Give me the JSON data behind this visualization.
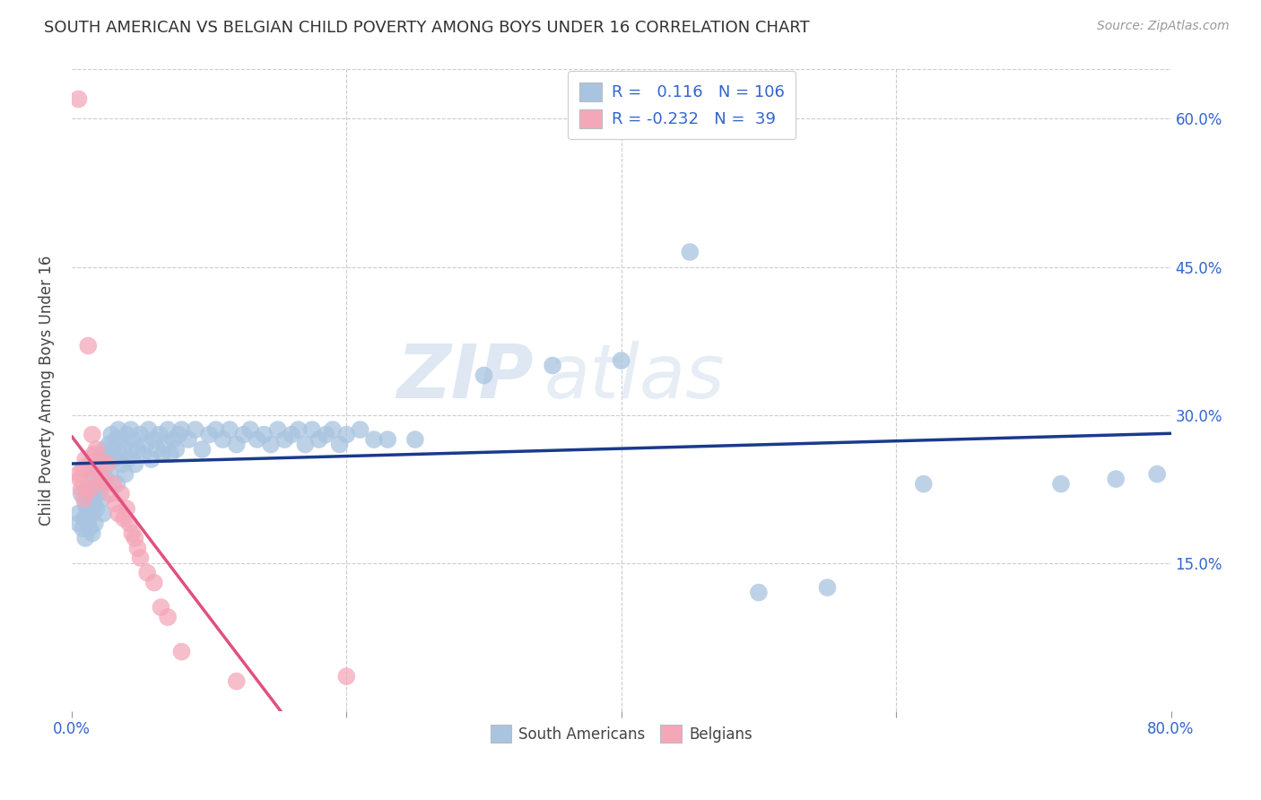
{
  "title": "SOUTH AMERICAN VS BELGIAN CHILD POVERTY AMONG BOYS UNDER 16 CORRELATION CHART",
  "source": "Source: ZipAtlas.com",
  "ylabel": "Child Poverty Among Boys Under 16",
  "xlim": [
    0.0,
    0.8
  ],
  "ylim": [
    0.0,
    0.65
  ],
  "yticks": [
    0.15,
    0.3,
    0.45,
    0.6
  ],
  "ytick_labels": [
    "15.0%",
    "30.0%",
    "45.0%",
    "60.0%"
  ],
  "xtick_labels": [
    "0.0%",
    "80.0%"
  ],
  "south_american_R": 0.116,
  "south_american_N": 106,
  "belgian_R": -0.232,
  "belgian_N": 39,
  "south_american_color": "#a8c4e0",
  "belgian_color": "#f4a7b9",
  "trend_sa_color": "#1a3a8c",
  "trend_be_color": "#e05080",
  "trend_be_dash_color": "#f0a0b8",
  "watermark_zip": "ZIP",
  "watermark_atlas": "atlas",
  "sa_points_x": [
    0.005,
    0.005,
    0.007,
    0.008,
    0.009,
    0.01,
    0.01,
    0.011,
    0.012,
    0.012,
    0.013,
    0.013,
    0.014,
    0.015,
    0.015,
    0.015,
    0.016,
    0.016,
    0.017,
    0.017,
    0.018,
    0.018,
    0.019,
    0.02,
    0.021,
    0.022,
    0.022,
    0.023,
    0.023,
    0.024,
    0.025,
    0.026,
    0.027,
    0.028,
    0.029,
    0.03,
    0.031,
    0.032,
    0.033,
    0.034,
    0.035,
    0.036,
    0.037,
    0.038,
    0.039,
    0.04,
    0.041,
    0.043,
    0.044,
    0.045,
    0.046,
    0.048,
    0.05,
    0.052,
    0.054,
    0.056,
    0.058,
    0.06,
    0.062,
    0.064,
    0.066,
    0.068,
    0.07,
    0.072,
    0.074,
    0.076,
    0.078,
    0.08,
    0.085,
    0.09,
    0.095,
    0.1,
    0.105,
    0.11,
    0.115,
    0.12,
    0.125,
    0.13,
    0.135,
    0.14,
    0.145,
    0.15,
    0.155,
    0.16,
    0.165,
    0.17,
    0.175,
    0.18,
    0.185,
    0.19,
    0.195,
    0.2,
    0.21,
    0.22,
    0.23,
    0.25,
    0.3,
    0.35,
    0.4,
    0.45,
    0.5,
    0.55,
    0.62,
    0.72,
    0.76,
    0.79
  ],
  "sa_points_y": [
    0.2,
    0.19,
    0.22,
    0.185,
    0.195,
    0.21,
    0.175,
    0.205,
    0.225,
    0.19,
    0.215,
    0.185,
    0.22,
    0.235,
    0.2,
    0.18,
    0.245,
    0.21,
    0.225,
    0.19,
    0.24,
    0.205,
    0.22,
    0.25,
    0.23,
    0.26,
    0.215,
    0.245,
    0.2,
    0.265,
    0.235,
    0.255,
    0.27,
    0.24,
    0.28,
    0.265,
    0.255,
    0.275,
    0.23,
    0.285,
    0.26,
    0.275,
    0.25,
    0.265,
    0.24,
    0.28,
    0.255,
    0.285,
    0.265,
    0.275,
    0.25,
    0.265,
    0.28,
    0.26,
    0.27,
    0.285,
    0.255,
    0.275,
    0.265,
    0.28,
    0.26,
    0.27,
    0.285,
    0.26,
    0.275,
    0.265,
    0.28,
    0.285,
    0.275,
    0.285,
    0.265,
    0.28,
    0.285,
    0.275,
    0.285,
    0.27,
    0.28,
    0.285,
    0.275,
    0.28,
    0.27,
    0.285,
    0.275,
    0.28,
    0.285,
    0.27,
    0.285,
    0.275,
    0.28,
    0.285,
    0.27,
    0.28,
    0.285,
    0.275,
    0.275,
    0.275,
    0.34,
    0.35,
    0.355,
    0.465,
    0.12,
    0.125,
    0.23,
    0.23,
    0.235,
    0.24
  ],
  "be_points_x": [
    0.005,
    0.005,
    0.006,
    0.007,
    0.008,
    0.009,
    0.01,
    0.011,
    0.012,
    0.013,
    0.014,
    0.015,
    0.016,
    0.017,
    0.018,
    0.019,
    0.02,
    0.022,
    0.024,
    0.026,
    0.028,
    0.03,
    0.032,
    0.034,
    0.036,
    0.038,
    0.04,
    0.042,
    0.044,
    0.046,
    0.048,
    0.05,
    0.055,
    0.06,
    0.065,
    0.07,
    0.08,
    0.12,
    0.2
  ],
  "be_points_y": [
    0.62,
    0.24,
    0.235,
    0.225,
    0.245,
    0.215,
    0.255,
    0.225,
    0.37,
    0.25,
    0.225,
    0.28,
    0.26,
    0.235,
    0.265,
    0.245,
    0.255,
    0.235,
    0.23,
    0.25,
    0.22,
    0.23,
    0.21,
    0.2,
    0.22,
    0.195,
    0.205,
    0.19,
    0.18,
    0.175,
    0.165,
    0.155,
    0.14,
    0.13,
    0.105,
    0.095,
    0.06,
    0.03,
    0.035
  ]
}
